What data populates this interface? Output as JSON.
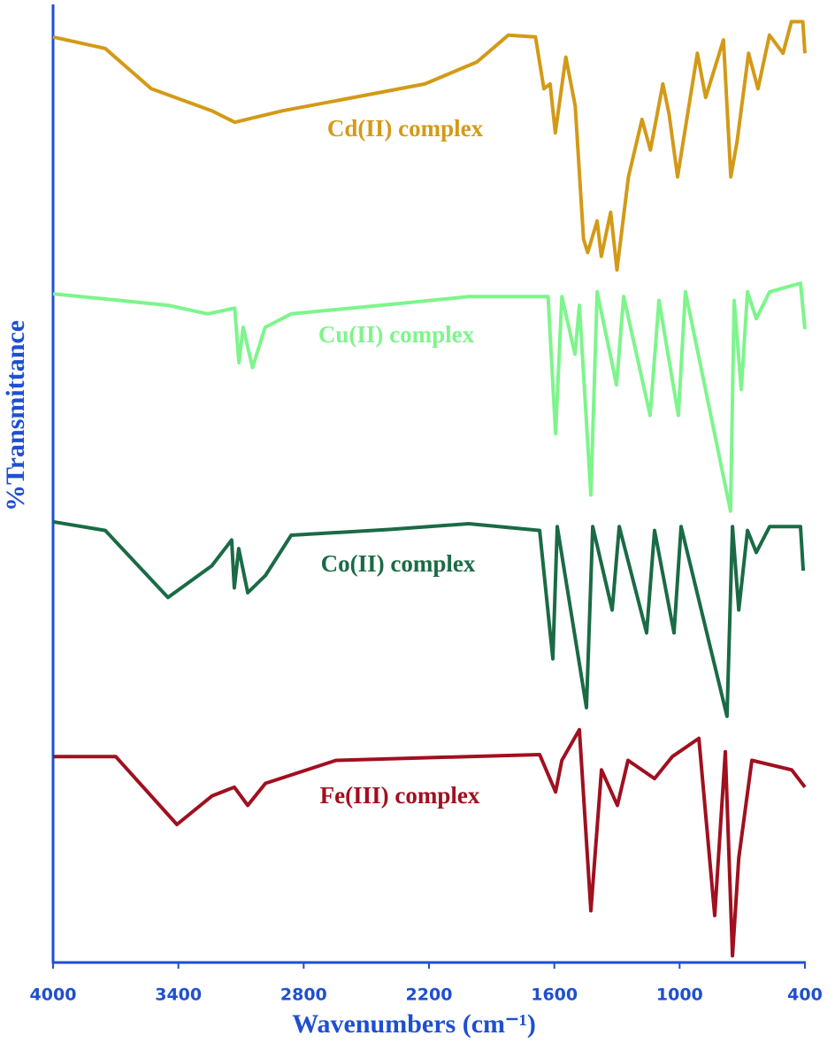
{
  "chart_data": {
    "type": "line",
    "xlabel": "Wavenumbers (cm⁻¹)",
    "ylabel": "%Transmittance",
    "xlim": [
      4000,
      400
    ],
    "xticks": [
      4000,
      3400,
      2800,
      2200,
      1600,
      1000,
      400
    ],
    "ylim": [
      0,
      100
    ],
    "series": [
      {
        "name": "Cd(II) complex",
        "color": "#d39a17",
        "x": [
          4000,
          3750,
          3530,
          3240,
          3130,
          2900,
          2560,
          2220,
          1970,
          1820,
          1690,
          1650,
          1620,
          1595,
          1545,
          1500,
          1460,
          1440,
          1395,
          1375,
          1330,
          1300,
          1245,
          1180,
          1140,
          1080,
          1050,
          1010,
          915,
          875,
          790,
          755,
          725,
          670,
          625,
          570,
          505,
          465,
          410,
          400
        ],
        "values": [
          96.6,
          95.4,
          91.2,
          88.9,
          87.7,
          88.9,
          90.3,
          91.7,
          94.0,
          96.8,
          96.6,
          91.2,
          91.7,
          86.6,
          94.5,
          89.4,
          75.5,
          74.1,
          77.4,
          73.7,
          78.3,
          72.3,
          82.0,
          88.0,
          84.8,
          91.7,
          88.5,
          82.0,
          94.9,
          90.3,
          96.3,
          82.0,
          85.7,
          94.9,
          91.2,
          96.8,
          94.9,
          98.2,
          98.2,
          94.9
        ]
      },
      {
        "name": "Cu(II) complex",
        "color": "#7df58c",
        "x": [
          4000,
          3450,
          3260,
          3130,
          3110,
          3090,
          3045,
          2985,
          2860,
          2430,
          2010,
          1630,
          1594,
          1564,
          1501,
          1480,
          1425,
          1395,
          1302,
          1268,
          1141,
          1099,
          1006,
          972,
          756,
          739,
          705,
          675,
          633,
          569,
          421,
          400
        ],
        "values": [
          69.8,
          68.6,
          67.7,
          68.3,
          62.6,
          66.3,
          62.1,
          66.3,
          67.7,
          68.6,
          69.5,
          69.5,
          55.2,
          69.5,
          63.5,
          68.6,
          48.8,
          70.0,
          60.3,
          69.5,
          57.1,
          69.1,
          57.1,
          70.0,
          47.1,
          69.1,
          59.8,
          70.0,
          67.2,
          70.0,
          70.9,
          66.1
        ]
      },
      {
        "name": "Co(II) complex",
        "color": "#1a6b45",
        "x": [
          4000,
          3750,
          3450,
          3240,
          3145,
          3132,
          3111,
          3068,
          2983,
          2860,
          2390,
          2010,
          1670,
          1607,
          1586,
          1446,
          1416,
          1323,
          1289,
          1158,
          1120,
          1027,
          993,
          773,
          747,
          717,
          675,
          633,
          569,
          421,
          408
        ],
        "values": [
          46.0,
          45.1,
          38.1,
          41.4,
          44.1,
          39.1,
          43.2,
          38.6,
          40.4,
          44.6,
          45.2,
          45.8,
          45.1,
          31.7,
          45.5,
          26.6,
          45.5,
          36.8,
          45.5,
          34.4,
          45.1,
          34.4,
          45.5,
          25.7,
          45.5,
          36.8,
          45.1,
          42.8,
          45.5,
          45.5,
          40.9
        ]
      },
      {
        "name": "Fe(III) complex",
        "color": "#a0101f",
        "x": [
          4000,
          3700,
          3407,
          3238,
          3132,
          3068,
          2983,
          2645,
          2010,
          1670,
          1594,
          1564,
          1480,
          1425,
          1374,
          1298,
          1247,
          1120,
          1035,
          908,
          832,
          781,
          747,
          717,
          654,
          463,
          400
        ],
        "values": [
          21.5,
          21.5,
          14.4,
          17.4,
          18.3,
          16.4,
          18.7,
          21.1,
          21.5,
          21.7,
          17.8,
          21.1,
          24.3,
          5.4,
          20.1,
          16.4,
          21.1,
          19.2,
          21.5,
          23.4,
          4.9,
          22.0,
          0.7,
          10.9,
          21.1,
          20.1,
          18.3
        ]
      }
    ]
  }
}
